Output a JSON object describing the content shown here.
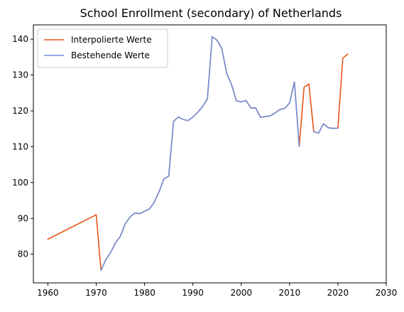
{
  "chart_data": {
    "type": "line",
    "title": "School Enrollment (secondary) of Netherlands",
    "xlabel": "",
    "ylabel": "",
    "xlim": [
      1957,
      2030
    ],
    "ylim": [
      72,
      144
    ],
    "x_ticks": [
      1960,
      1970,
      1980,
      1990,
      2000,
      2010,
      2020,
      2030
    ],
    "y_ticks": [
      80,
      90,
      100,
      110,
      120,
      130,
      140
    ],
    "legend_position": "top-left",
    "grid": false,
    "series": [
      {
        "name": "Interpolierte Werte",
        "color": "#e8541a",
        "points": [
          [
            1960,
            84.2
          ],
          [
            1970,
            91.0
          ],
          [
            1971,
            75.5
          ],
          [
            1972,
            78.5
          ],
          [
            1973,
            80.5
          ],
          [
            1974,
            83.2
          ],
          [
            1975,
            85.0
          ],
          [
            1976,
            88.5
          ],
          [
            1977,
            90.4
          ],
          [
            1978,
            91.5
          ],
          [
            1979,
            91.3
          ],
          [
            1980,
            92.0
          ],
          [
            1981,
            92.6
          ],
          [
            1982,
            94.5
          ],
          [
            1983,
            97.4
          ],
          [
            1984,
            101.0
          ],
          [
            1985,
            101.8
          ],
          [
            1986,
            117.1
          ],
          [
            1987,
            118.3
          ],
          [
            1988,
            117.6
          ],
          [
            1989,
            117.3
          ],
          [
            1990,
            118.3
          ],
          [
            1991,
            119.6
          ],
          [
            1992,
            121.2
          ],
          [
            1993,
            123.3
          ],
          [
            1994,
            140.7
          ],
          [
            1995,
            139.7
          ],
          [
            1996,
            137.3
          ],
          [
            1997,
            130.4
          ],
          [
            1998,
            127.3
          ],
          [
            1999,
            122.8
          ],
          [
            2000,
            122.5
          ],
          [
            2001,
            122.9
          ],
          [
            2002,
            120.8
          ],
          [
            2003,
            120.8
          ],
          [
            2004,
            118.2
          ],
          [
            2005,
            118.4
          ],
          [
            2006,
            118.6
          ],
          [
            2007,
            119.4
          ],
          [
            2008,
            120.4
          ],
          [
            2009,
            120.7
          ],
          [
            2010,
            122.2
          ],
          [
            2011,
            128.1
          ],
          [
            2012,
            110.1
          ],
          [
            2013,
            126.6
          ],
          [
            2014,
            127.5
          ],
          [
            2015,
            114.2
          ],
          [
            2016,
            113.8
          ],
          [
            2017,
            116.4
          ],
          [
            2018,
            115.3
          ],
          [
            2019,
            115.1
          ],
          [
            2020,
            115.2
          ],
          [
            2021,
            134.7
          ],
          [
            2022,
            135.8
          ]
        ]
      },
      {
        "name": "Bestehende Werte",
        "color": "#6f8fdc",
        "segments": [
          [
            [
              1971,
              75.5
            ],
            [
              1972,
              78.5
            ],
            [
              1973,
              80.5
            ],
            [
              1974,
              83.2
            ],
            [
              1975,
              85.0
            ],
            [
              1976,
              88.5
            ],
            [
              1977,
              90.4
            ],
            [
              1978,
              91.5
            ],
            [
              1979,
              91.3
            ],
            [
              1980,
              92.0
            ],
            [
              1981,
              92.6
            ],
            [
              1982,
              94.5
            ],
            [
              1983,
              97.4
            ],
            [
              1984,
              101.0
            ],
            [
              1985,
              101.8
            ],
            [
              1986,
              117.1
            ],
            [
              1987,
              118.3
            ],
            [
              1988,
              117.6
            ],
            [
              1989,
              117.3
            ],
            [
              1990,
              118.3
            ],
            [
              1991,
              119.6
            ],
            [
              1992,
              121.2
            ],
            [
              1993,
              123.3
            ],
            [
              1994,
              140.7
            ],
            [
              1995,
              139.7
            ],
            [
              1996,
              137.3
            ],
            [
              1997,
              130.4
            ],
            [
              1998,
              127.3
            ],
            [
              1999,
              122.8
            ],
            [
              2000,
              122.5
            ],
            [
              2001,
              122.9
            ],
            [
              2002,
              120.8
            ],
            [
              2003,
              120.8
            ],
            [
              2004,
              118.2
            ],
            [
              2005,
              118.4
            ],
            [
              2006,
              118.6
            ],
            [
              2007,
              119.4
            ],
            [
              2008,
              120.4
            ],
            [
              2009,
              120.7
            ],
            [
              2010,
              122.2
            ],
            [
              2011,
              128.1
            ],
            [
              2012,
              110.1
            ]
          ],
          [
            [
              2015,
              114.2
            ],
            [
              2016,
              113.8
            ],
            [
              2017,
              116.4
            ],
            [
              2018,
              115.3
            ],
            [
              2019,
              115.1
            ],
            [
              2020,
              115.2
            ]
          ]
        ]
      }
    ]
  }
}
